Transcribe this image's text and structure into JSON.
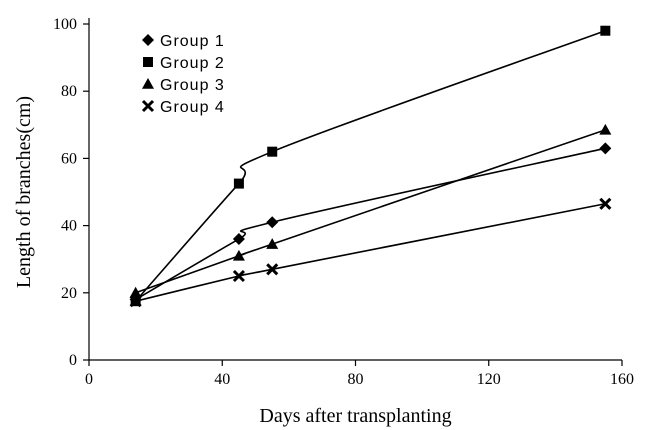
{
  "chart_data": {
    "type": "line",
    "xlabel": "Days after transplanting",
    "ylabel": "Length of branches(cm)",
    "xlim": [
      0,
      160
    ],
    "ylim": [
      0,
      100
    ],
    "xticks": [
      0,
      40,
      80,
      120,
      160
    ],
    "yticks": [
      0,
      20,
      40,
      60,
      80,
      100
    ],
    "grid": false,
    "legend_position": "top-left",
    "x": [
      14,
      45,
      55,
      155
    ],
    "series": [
      {
        "name": "Group 1",
        "marker": "diamond",
        "values": [
          18,
          36,
          41,
          63
        ]
      },
      {
        "name": "Group 2",
        "marker": "square",
        "values": [
          17.5,
          52.5,
          62,
          98
        ]
      },
      {
        "name": "Group 3",
        "marker": "triangle",
        "values": [
          20,
          31,
          34.5,
          68.5
        ]
      },
      {
        "name": "Group 4",
        "marker": "cross",
        "values": [
          17.5,
          25,
          27,
          46.5
        ]
      }
    ]
  }
}
